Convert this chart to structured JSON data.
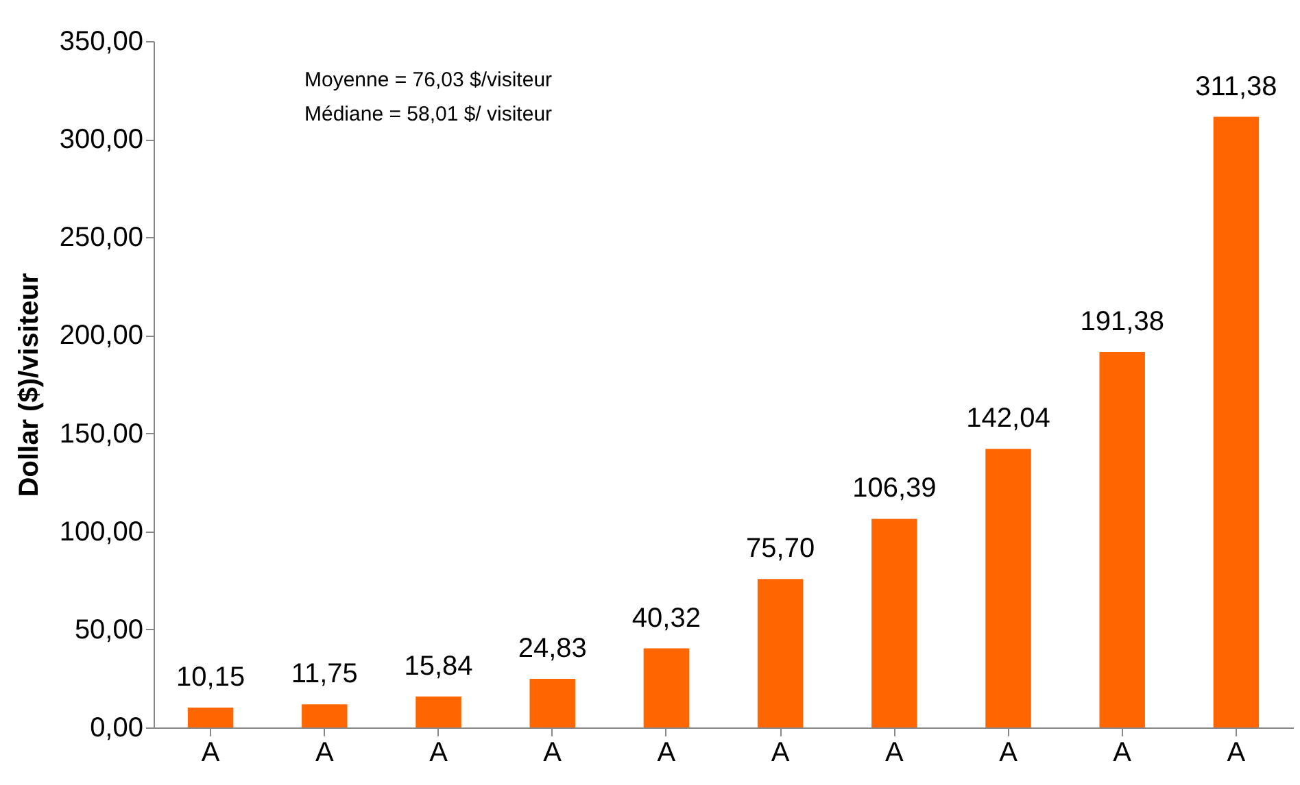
{
  "chart_data": {
    "type": "bar",
    "ylabel": "Dollar ($)/visiteur",
    "categories": [
      "A",
      "A",
      "A",
      "A",
      "A",
      "A",
      "A",
      "A",
      "A",
      "A"
    ],
    "values": [
      10.15,
      11.75,
      15.84,
      24.83,
      40.32,
      75.7,
      106.39,
      142.04,
      191.38,
      311.38
    ],
    "value_labels": [
      "10,15",
      "11,75",
      "15,84",
      "24,83",
      "40,32",
      "75,70",
      "106,39",
      "142,04",
      "191,38",
      "311,38"
    ],
    "color": "#ff6600",
    "ylim": [
      0,
      350
    ],
    "yticks": [
      {
        "value": 0,
        "label": "0,00"
      },
      {
        "value": 50,
        "label": "50,00"
      },
      {
        "value": 100,
        "label": "100,00"
      },
      {
        "value": 150,
        "label": "150,00"
      },
      {
        "value": 200,
        "label": "200,00"
      },
      {
        "value": 250,
        "label": "250,00"
      },
      {
        "value": 300,
        "label": "300,00"
      },
      {
        "value": 350,
        "label": "350,00"
      }
    ],
    "grid": false,
    "annotations": [
      "Moyenne = 76,03 $/visiteur",
      "Médiane = 58,01 $/ visiteur"
    ]
  }
}
